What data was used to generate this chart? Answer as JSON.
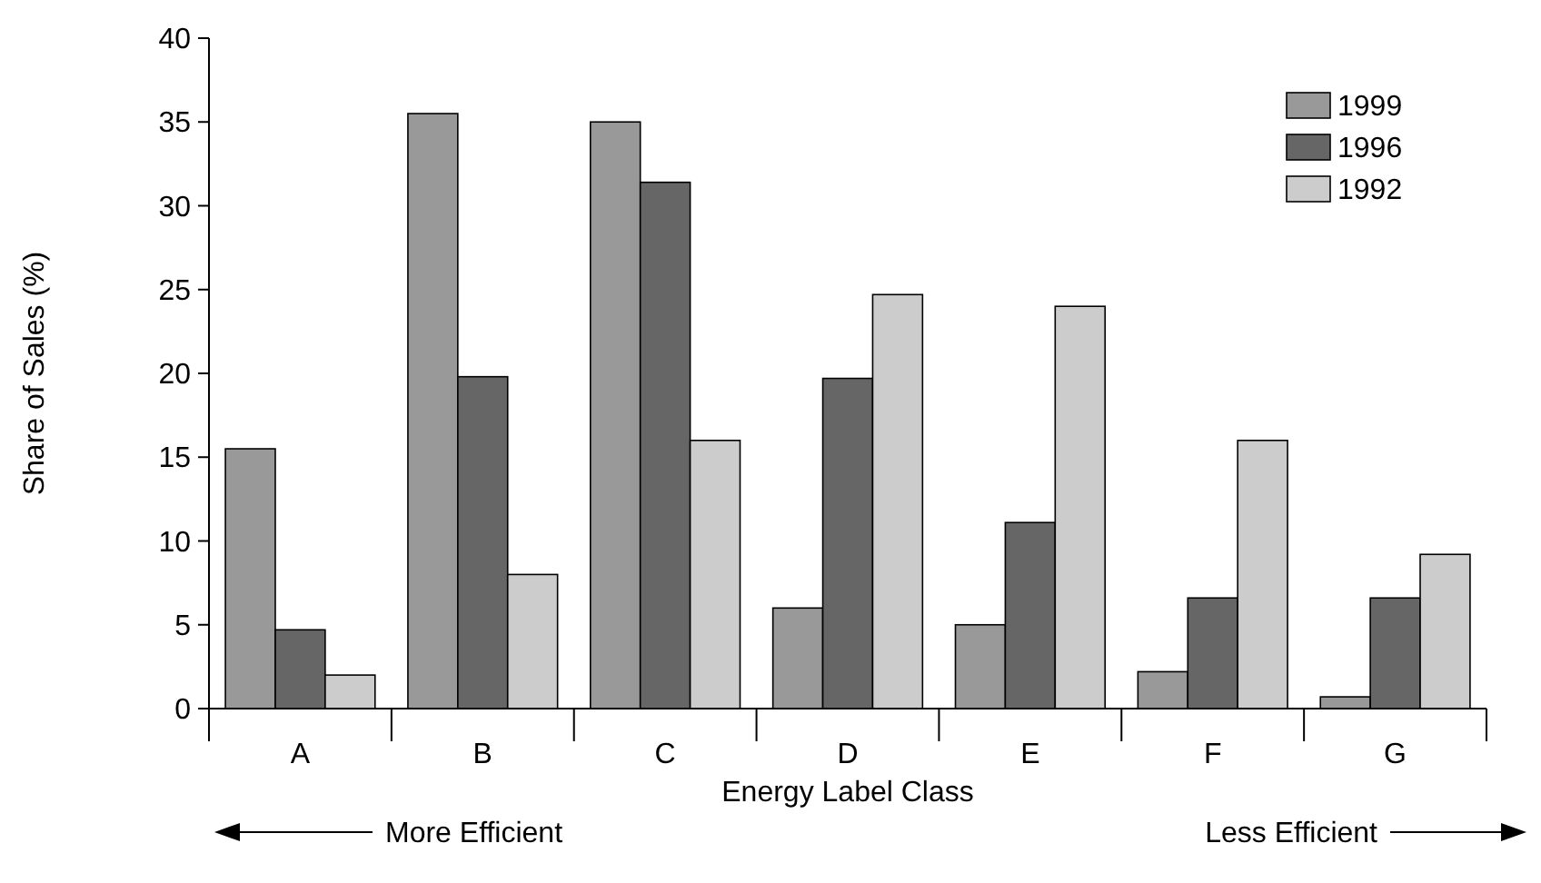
{
  "chart_data": {
    "type": "bar",
    "xlabel": "Energy Label Class",
    "ylabel": "Share of Sales (%)",
    "categories": [
      "A",
      "B",
      "C",
      "D",
      "E",
      "F",
      "G"
    ],
    "series": [
      {
        "name": "1999",
        "color": "#999999",
        "values": [
          15.5,
          35.5,
          35.0,
          6.0,
          5.0,
          2.2,
          0.7
        ]
      },
      {
        "name": "1996",
        "color": "#666666",
        "values": [
          4.7,
          19.8,
          31.4,
          19.7,
          11.1,
          6.6,
          6.6
        ]
      },
      {
        "name": "1992",
        "color": "#cccccc",
        "values": [
          2.0,
          8.0,
          16.0,
          24.7,
          24.0,
          16.0,
          9.2
        ]
      }
    ],
    "ylim": [
      0,
      40
    ],
    "yticks": [
      0,
      5,
      10,
      15,
      20,
      25,
      30,
      35,
      40
    ],
    "grid": false,
    "legend": "top right",
    "annotations": [
      "More Efficient",
      "Less Efficient"
    ]
  }
}
